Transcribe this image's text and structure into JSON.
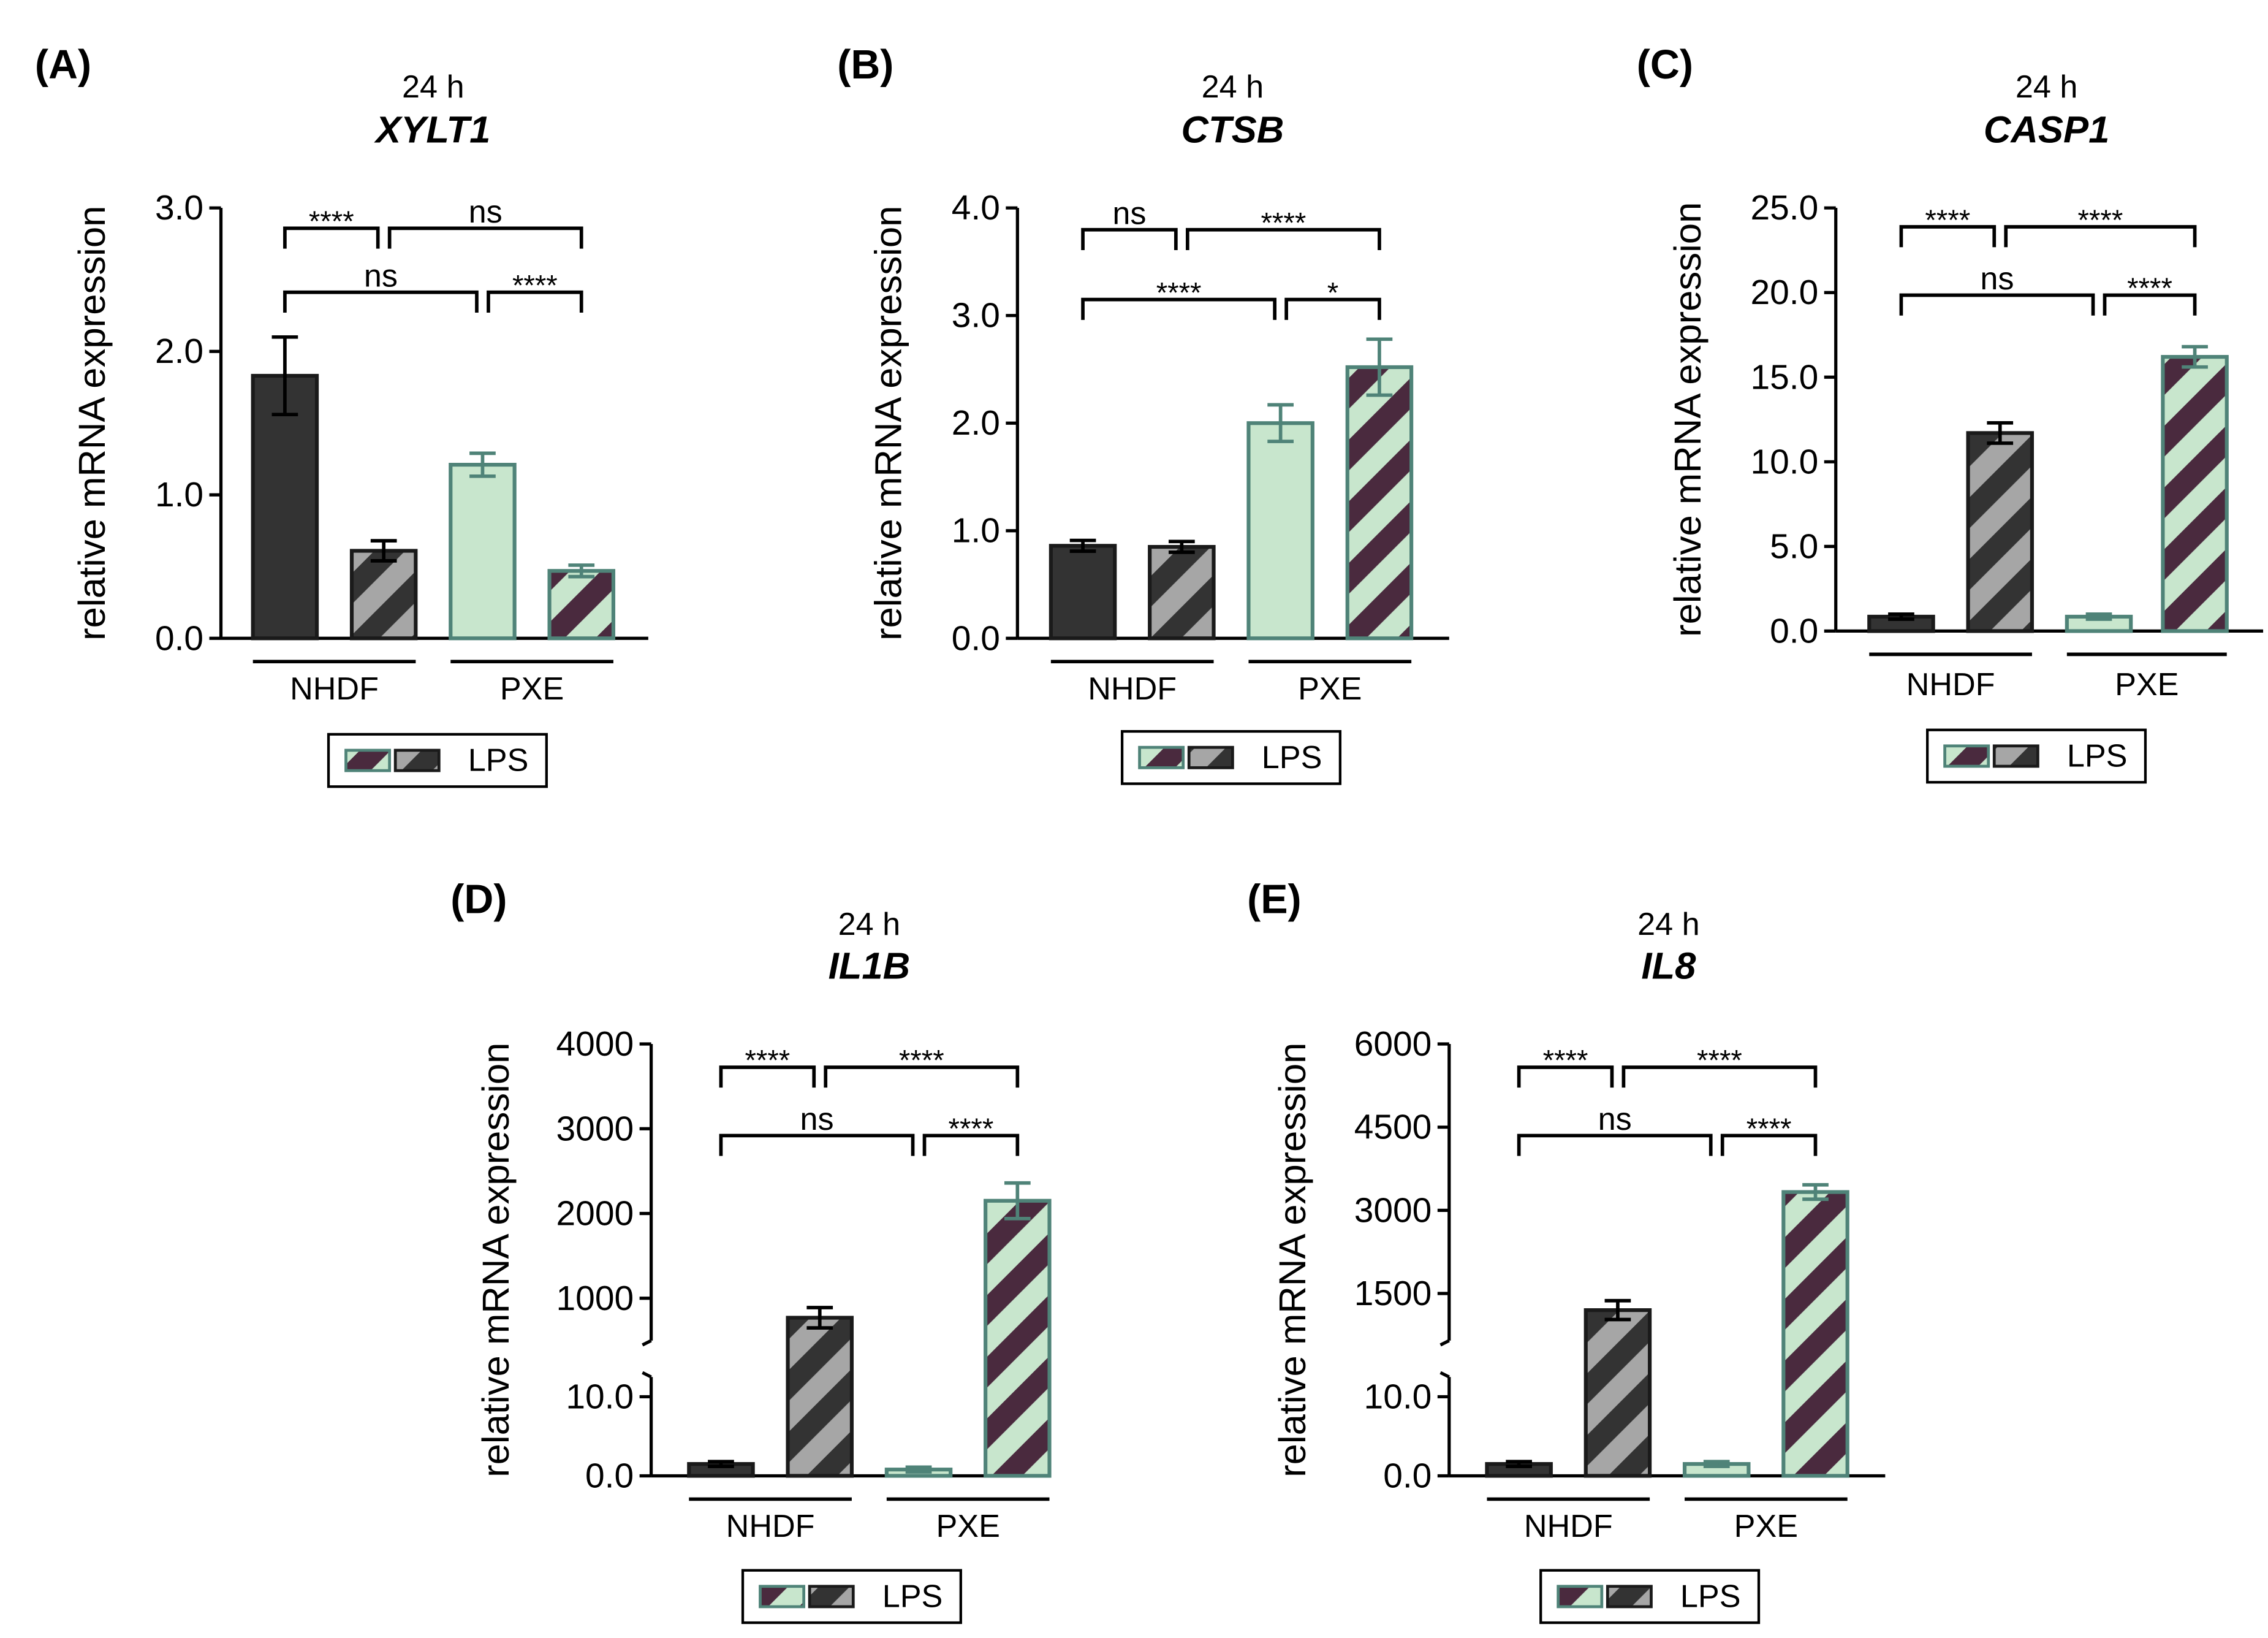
{
  "colors": {
    "ctrl_nhdf": "#333333",
    "ctrl_pxe": "#c8e6cd",
    "edge_nhdf": "#1a1a1a",
    "edge_pxe": "#4f8378",
    "stripe_nhdf_light": "#a6a6a6",
    "stripe_nhdf_dark": "#333333",
    "stripe_pxe_light": "#c8e6cd",
    "stripe_pxe_dark": "#4a2a3e"
  },
  "chart_data": [
    {
      "panel": "(A)",
      "type": "bar",
      "title": "XYLT1",
      "subtitle": "24 h",
      "ylabel": "relative mRNA expression",
      "ylim": [
        0,
        3.0
      ],
      "yticks": [
        "0.0",
        "1.0",
        "2.0",
        "3.0"
      ],
      "groups": [
        "NHDF",
        "PXE"
      ],
      "bars": [
        {
          "group": "NHDF",
          "lps": false,
          "value": 1.83,
          "error": 0.27
        },
        {
          "group": "NHDF",
          "lps": true,
          "value": 0.61,
          "error": 0.07
        },
        {
          "group": "PXE",
          "lps": false,
          "value": 1.21,
          "error": 0.08
        },
        {
          "group": "PXE",
          "lps": true,
          "value": 0.47,
          "error": 0.04
        }
      ],
      "significance": [
        {
          "from": 0,
          "to": 1,
          "label": "****"
        },
        {
          "from": 1,
          "to": 3,
          "label": "ns"
        },
        {
          "from": 0,
          "to": 2,
          "label": "ns"
        },
        {
          "from": 2,
          "to": 3,
          "label": "****"
        }
      ],
      "legend": "LPS"
    },
    {
      "panel": "(B)",
      "type": "bar",
      "title": "CTSB",
      "subtitle": "24 h",
      "ylabel": "relative mRNA expression",
      "ylim": [
        0,
        4.0
      ],
      "yticks": [
        "0.0",
        "1.0",
        "2.0",
        "3.0",
        "4.0"
      ],
      "groups": [
        "NHDF",
        "PXE"
      ],
      "bars": [
        {
          "group": "NHDF",
          "lps": false,
          "value": 0.86,
          "error": 0.05
        },
        {
          "group": "NHDF",
          "lps": true,
          "value": 0.85,
          "error": 0.05
        },
        {
          "group": "PXE",
          "lps": false,
          "value": 2.0,
          "error": 0.17
        },
        {
          "group": "PXE",
          "lps": true,
          "value": 2.52,
          "error": 0.26
        }
      ],
      "significance": [
        {
          "from": 0,
          "to": 1,
          "label": "ns"
        },
        {
          "from": 1,
          "to": 3,
          "label": "****"
        },
        {
          "from": 0,
          "to": 2,
          "label": "****"
        },
        {
          "from": 2,
          "to": 3,
          "label": "*"
        }
      ],
      "legend": "LPS"
    },
    {
      "panel": "(C)",
      "type": "bar",
      "title": "CASP1",
      "subtitle": "24 h",
      "ylabel": "relative mRNA expression",
      "ylim": [
        0,
        25.0
      ],
      "yticks": [
        "0.0",
        "5.0",
        "10.0",
        "15.0",
        "20.0",
        "25.0"
      ],
      "groups": [
        "NHDF",
        "PXE"
      ],
      "bars": [
        {
          "group": "NHDF",
          "lps": false,
          "value": 0.85,
          "error": 0.15
        },
        {
          "group": "NHDF",
          "lps": true,
          "value": 11.7,
          "error": 0.6
        },
        {
          "group": "PXE",
          "lps": false,
          "value": 0.85,
          "error": 0.15
        },
        {
          "group": "PXE",
          "lps": true,
          "value": 16.2,
          "error": 0.6
        }
      ],
      "significance": [
        {
          "from": 0,
          "to": 1,
          "label": "****"
        },
        {
          "from": 1,
          "to": 3,
          "label": "****"
        },
        {
          "from": 0,
          "to": 2,
          "label": "ns"
        },
        {
          "from": 2,
          "to": 3,
          "label": "****"
        }
      ],
      "legend": "LPS"
    },
    {
      "panel": "(D)",
      "type": "bar",
      "title": "IL1B",
      "subtitle": "24 h",
      "ylabel": "relative mRNA expression",
      "broken_axis": true,
      "ylim_lower": [
        0,
        12.5
      ],
      "ylim_upper": [
        500,
        4000
      ],
      "yticks_lower": [
        "0.0",
        "10.0"
      ],
      "yticks_upper": [
        "1000",
        "2000",
        "3000",
        "4000"
      ],
      "groups": [
        "NHDF",
        "PXE"
      ],
      "bars": [
        {
          "group": "NHDF",
          "lps": false,
          "value": 1.5,
          "error": 0.3
        },
        {
          "group": "NHDF",
          "lps": true,
          "value": 770,
          "error": 120
        },
        {
          "group": "PXE",
          "lps": false,
          "value": 0.8,
          "error": 0.3
        },
        {
          "group": "PXE",
          "lps": true,
          "value": 2150,
          "error": 210
        }
      ],
      "significance": [
        {
          "from": 0,
          "to": 1,
          "label": "****"
        },
        {
          "from": 1,
          "to": 3,
          "label": "****"
        },
        {
          "from": 0,
          "to": 2,
          "label": "ns"
        },
        {
          "from": 2,
          "to": 3,
          "label": "****"
        }
      ],
      "legend": "LPS"
    },
    {
      "panel": "(E)",
      "type": "bar",
      "title": "IL8",
      "subtitle": "24 h",
      "ylabel": "relative mRNA expression",
      "broken_axis": true,
      "ylim_lower": [
        0,
        12.5
      ],
      "ylim_upper": [
        650,
        6000
      ],
      "yticks_lower": [
        "0.0",
        "10.0"
      ],
      "yticks_upper": [
        "1500",
        "3000",
        "4500",
        "6000"
      ],
      "groups": [
        "NHDF",
        "PXE"
      ],
      "bars": [
        {
          "group": "NHDF",
          "lps": false,
          "value": 1.5,
          "error": 0.3
        },
        {
          "group": "NHDF",
          "lps": true,
          "value": 1200,
          "error": 170
        },
        {
          "group": "PXE",
          "lps": false,
          "value": 1.5,
          "error": 0.3
        },
        {
          "group": "PXE",
          "lps": true,
          "value": 3330,
          "error": 130
        }
      ],
      "significance": [
        {
          "from": 0,
          "to": 1,
          "label": "****"
        },
        {
          "from": 1,
          "to": 3,
          "label": "****"
        },
        {
          "from": 0,
          "to": 2,
          "label": "ns"
        },
        {
          "from": 2,
          "to": 3,
          "label": "****"
        }
      ],
      "legend": "LPS"
    }
  ]
}
